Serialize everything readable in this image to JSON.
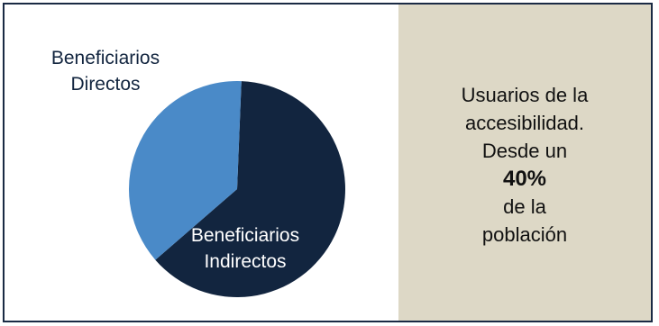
{
  "chart_data": {
    "type": "pie",
    "categories": [
      "Beneficiarios Directos",
      "Beneficiarios Indirectos"
    ],
    "values": [
      37,
      63
    ],
    "colors": [
      "#4a8ac8",
      "#12253f"
    ],
    "label_colors": [
      "#12253f",
      "#ffffff"
    ],
    "labels": {
      "directos": [
        "Beneficiarios",
        "Directos"
      ],
      "indirectos": [
        "Beneficiarios",
        "Indirectos"
      ]
    }
  },
  "info_panel": {
    "line1": "Usuarios de la",
    "line2": "accesibilidad.",
    "line3": "Desde un",
    "highlight": "40%",
    "line5": "de la",
    "line6": "población"
  }
}
